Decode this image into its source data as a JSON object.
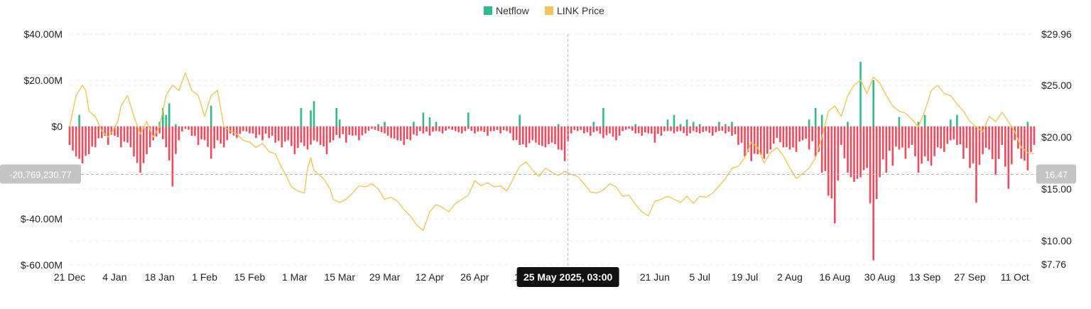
{
  "chart_data": {
    "type": "bar+line",
    "legend": [
      {
        "name": "Netflow",
        "color": "#2ebd85"
      },
      {
        "name": "LINK Price",
        "color": "#f6c453"
      }
    ],
    "x_ticks": [
      "21 Dec",
      "4 Jan",
      "18 Jan",
      "1 Feb",
      "15 Feb",
      "1 Mar",
      "15 Mar",
      "29 Mar",
      "12 Apr",
      "26 Apr",
      "10",
      "21 Jun",
      "5 Jul",
      "19 Jul",
      "2 Aug",
      "16 Aug",
      "30 Aug",
      "13 Sep",
      "27 Sep",
      "11 Oct"
    ],
    "x_tick_days": [
      0,
      14,
      28,
      42,
      56,
      70,
      84,
      98,
      112,
      126,
      140,
      182,
      196,
      210,
      224,
      238,
      252,
      266,
      280,
      294
    ],
    "y_left_ticks": [
      "$40.00M",
      "$20.00M",
      "$0",
      "$-40.00M",
      "$-60.00M"
    ],
    "y_left_tick_values": [
      40,
      20,
      0,
      -40,
      -60
    ],
    "y_left_range": [
      -60,
      40
    ],
    "y_right_ticks": [
      "$29.96",
      "$25.00",
      "$20.00",
      "$15.00",
      "$10.00",
      "$7.76"
    ],
    "y_right_tick_values": [
      29.96,
      25,
      20,
      15,
      10,
      7.76
    ],
    "y_right_range": [
      7.76,
      29.96
    ],
    "crosshair": {
      "day": 155,
      "left_label": "-20,769,230.77",
      "right_label": "16.47",
      "left_value": -20.77,
      "right_value": 16.47,
      "tooltip": "25 May 2025, 03:00"
    },
    "netflow_anchors": [
      [
        0,
        -8
      ],
      [
        2,
        -13
      ],
      [
        4,
        -16
      ],
      [
        6,
        -12
      ],
      [
        8,
        -9
      ],
      [
        10,
        -5
      ],
      [
        12,
        -8
      ],
      [
        14,
        -4
      ],
      [
        16,
        -9
      ],
      [
        18,
        -7
      ],
      [
        20,
        -13
      ],
      [
        22,
        -20
      ],
      [
        24,
        -12
      ],
      [
        26,
        -6
      ],
      [
        28,
        -3
      ],
      [
        30,
        -9
      ],
      [
        32,
        -26
      ],
      [
        34,
        -6
      ],
      [
        36,
        -1
      ],
      [
        38,
        -4
      ],
      [
        40,
        -8
      ],
      [
        42,
        -6
      ],
      [
        44,
        -14
      ],
      [
        46,
        -6
      ],
      [
        48,
        -9
      ],
      [
        50,
        -3
      ],
      [
        52,
        -5
      ],
      [
        54,
        -2
      ],
      [
        56,
        -3
      ],
      [
        58,
        -5
      ],
      [
        60,
        -6
      ],
      [
        62,
        -5
      ],
      [
        64,
        -7
      ],
      [
        66,
        -9
      ],
      [
        68,
        -6
      ],
      [
        70,
        -12
      ],
      [
        72,
        -7
      ],
      [
        74,
        -10
      ],
      [
        76,
        -6
      ],
      [
        78,
        -8
      ],
      [
        80,
        -12
      ],
      [
        82,
        -6
      ],
      [
        84,
        -5
      ],
      [
        86,
        -7
      ],
      [
        88,
        -4
      ],
      [
        90,
        -6
      ],
      [
        92,
        -3
      ],
      [
        94,
        -1
      ],
      [
        96,
        -2
      ],
      [
        98,
        -3
      ],
      [
        100,
        -5
      ],
      [
        102,
        -6
      ],
      [
        104,
        -8
      ],
      [
        106,
        -6
      ],
      [
        108,
        -4
      ],
      [
        110,
        -3
      ],
      [
        112,
        -4
      ],
      [
        114,
        -2
      ],
      [
        116,
        -3
      ],
      [
        118,
        -1
      ],
      [
        120,
        -2
      ],
      [
        122,
        -3
      ],
      [
        124,
        -1
      ],
      [
        126,
        -3
      ],
      [
        128,
        -2
      ],
      [
        130,
        -4
      ],
      [
        132,
        -2
      ],
      [
        134,
        -3
      ],
      [
        136,
        -2
      ],
      [
        138,
        -6
      ],
      [
        140,
        -8
      ],
      [
        142,
        -9
      ],
      [
        144,
        -6
      ],
      [
        146,
        -8
      ],
      [
        148,
        -9
      ],
      [
        150,
        -7
      ],
      [
        152,
        -10
      ],
      [
        154,
        -15
      ],
      [
        156,
        -3
      ],
      [
        158,
        -2
      ],
      [
        160,
        -3
      ],
      [
        162,
        -4
      ],
      [
        164,
        -2
      ],
      [
        166,
        -5
      ],
      [
        168,
        -3
      ],
      [
        170,
        -6
      ],
      [
        172,
        -2
      ],
      [
        174,
        -1
      ],
      [
        176,
        -3
      ],
      [
        178,
        -4
      ],
      [
        180,
        -3
      ],
      [
        182,
        -7
      ],
      [
        184,
        -4
      ],
      [
        186,
        -2
      ],
      [
        188,
        -3
      ],
      [
        190,
        -2
      ],
      [
        192,
        -4
      ],
      [
        194,
        -2
      ],
      [
        196,
        -3
      ],
      [
        198,
        -2
      ],
      [
        200,
        -4
      ],
      [
        202,
        -2
      ],
      [
        204,
        -3
      ],
      [
        206,
        -4
      ],
      [
        208,
        -8
      ],
      [
        210,
        -13
      ],
      [
        212,
        -15
      ],
      [
        214,
        -12
      ],
      [
        216,
        -14
      ],
      [
        218,
        -10
      ],
      [
        220,
        -5
      ],
      [
        222,
        -9
      ],
      [
        224,
        -10
      ],
      [
        226,
        -11
      ],
      [
        228,
        -6
      ],
      [
        230,
        -10
      ],
      [
        232,
        -13
      ],
      [
        234,
        -20
      ],
      [
        236,
        -30
      ],
      [
        238,
        -42
      ],
      [
        240,
        -8
      ],
      [
        242,
        -20
      ],
      [
        244,
        -24
      ],
      [
        246,
        -22
      ],
      [
        248,
        -18
      ],
      [
        250,
        -58
      ],
      [
        252,
        -22
      ],
      [
        254,
        -20
      ],
      [
        256,
        -17
      ],
      [
        258,
        -10
      ],
      [
        260,
        -14
      ],
      [
        262,
        -8
      ],
      [
        264,
        -20
      ],
      [
        266,
        -13
      ],
      [
        268,
        -17
      ],
      [
        270,
        -9
      ],
      [
        272,
        -11
      ],
      [
        274,
        -6
      ],
      [
        276,
        -8
      ],
      [
        278,
        -14
      ],
      [
        280,
        -18
      ],
      [
        282,
        -33
      ],
      [
        284,
        -12
      ],
      [
        286,
        -10
      ],
      [
        288,
        -21
      ],
      [
        290,
        -8
      ],
      [
        292,
        -27
      ],
      [
        294,
        -6
      ],
      [
        296,
        -14
      ],
      [
        298,
        -19
      ],
      [
        300,
        -8
      ]
    ],
    "netflow_positive": [
      [
        3,
        5
      ],
      [
        28,
        2
      ],
      [
        29,
        8
      ],
      [
        30,
        5
      ],
      [
        31,
        10
      ],
      [
        33,
        1
      ],
      [
        44,
        9
      ],
      [
        72,
        8
      ],
      [
        75,
        7
      ],
      [
        76,
        11
      ],
      [
        83,
        8
      ],
      [
        84,
        3
      ],
      [
        96,
        1
      ],
      [
        98,
        2
      ],
      [
        107,
        2
      ],
      [
        110,
        6
      ],
      [
        112,
        4
      ],
      [
        114,
        2
      ],
      [
        124,
        6
      ],
      [
        140,
        5
      ],
      [
        152,
        1
      ],
      [
        163,
        2
      ],
      [
        166,
        8
      ],
      [
        176,
        1
      ],
      [
        186,
        3
      ],
      [
        188,
        5
      ],
      [
        190,
        1
      ],
      [
        192,
        3
      ],
      [
        194,
        2
      ],
      [
        196,
        1
      ],
      [
        202,
        2
      ],
      [
        204,
        1
      ],
      [
        206,
        2
      ],
      [
        230,
        3
      ],
      [
        232,
        8
      ],
      [
        234,
        5
      ],
      [
        242,
        2
      ],
      [
        246,
        28
      ],
      [
        250,
        20
      ],
      [
        258,
        4
      ],
      [
        264,
        2
      ],
      [
        266,
        5
      ],
      [
        274,
        3
      ],
      [
        276,
        5
      ],
      [
        298,
        2
      ]
    ],
    "price_anchors": [
      [
        0,
        21
      ],
      [
        2,
        24
      ],
      [
        4,
        25
      ],
      [
        5,
        24.5
      ],
      [
        6,
        22.5
      ],
      [
        8,
        22
      ],
      [
        10,
        20.6
      ],
      [
        12,
        20
      ],
      [
        13,
        20.4
      ],
      [
        15,
        21.5
      ],
      [
        16,
        23
      ],
      [
        18,
        24
      ],
      [
        20,
        22
      ],
      [
        22,
        20.3
      ],
      [
        24,
        21.5
      ],
      [
        26,
        20
      ],
      [
        28,
        21
      ],
      [
        30,
        24
      ],
      [
        32,
        25
      ],
      [
        34,
        24.5
      ],
      [
        36,
        26.2
      ],
      [
        38,
        24.5
      ],
      [
        40,
        24
      ],
      [
        42,
        22
      ],
      [
        44,
        24
      ],
      [
        46,
        24.5
      ],
      [
        48,
        21
      ],
      [
        50,
        20.6
      ],
      [
        52,
        20.3
      ],
      [
        54,
        19.7
      ],
      [
        56,
        19.5
      ],
      [
        58,
        19
      ],
      [
        60,
        19.4
      ],
      [
        62,
        18.6
      ],
      [
        64,
        18.4
      ],
      [
        66,
        17
      ],
      [
        67,
        16.5
      ],
      [
        69,
        15.2
      ],
      [
        71,
        14.8
      ],
      [
        73,
        14.6
      ],
      [
        74,
        17
      ],
      [
        75,
        18
      ],
      [
        76,
        16.8
      ],
      [
        77,
        16.5
      ],
      [
        79,
        16
      ],
      [
        81,
        15
      ],
      [
        82,
        14
      ],
      [
        84,
        13.7
      ],
      [
        86,
        14
      ],
      [
        88,
        14.6
      ],
      [
        90,
        15.3
      ],
      [
        92,
        15.2
      ],
      [
        94,
        15.5
      ],
      [
        96,
        15
      ],
      [
        98,
        14
      ],
      [
        100,
        14.2
      ],
      [
        102,
        13.8
      ],
      [
        104,
        13
      ],
      [
        106,
        12.4
      ],
      [
        108,
        11.5
      ],
      [
        110,
        11
      ],
      [
        112,
        12.8
      ],
      [
        114,
        13.5
      ],
      [
        116,
        13.2
      ],
      [
        118,
        12.8
      ],
      [
        120,
        13.6
      ],
      [
        122,
        14
      ],
      [
        124,
        14.4
      ],
      [
        126,
        15.8
      ],
      [
        128,
        15.3
      ],
      [
        130,
        15.6
      ],
      [
        132,
        15.2
      ],
      [
        134,
        15.3
      ],
      [
        136,
        14.8
      ],
      [
        138,
        16
      ],
      [
        140,
        17.2
      ],
      [
        142,
        17.6
      ],
      [
        144,
        16.8
      ],
      [
        146,
        16.2
      ],
      [
        148,
        17
      ],
      [
        150,
        16.6
      ],
      [
        152,
        16.3
      ],
      [
        154,
        16.7
      ],
      [
        156,
        16.4
      ],
      [
        158,
        16.2
      ],
      [
        160,
        15.5
      ],
      [
        162,
        14.7
      ],
      [
        164,
        14.6
      ],
      [
        166,
        14.9
      ],
      [
        168,
        15.5
      ],
      [
        170,
        15.2
      ],
      [
        172,
        14.3
      ],
      [
        174,
        14.4
      ],
      [
        176,
        13.5
      ],
      [
        178,
        12.8
      ],
      [
        180,
        12.4
      ],
      [
        182,
        13.8
      ],
      [
        184,
        14
      ],
      [
        186,
        14.3
      ],
      [
        188,
        14
      ],
      [
        190,
        13.7
      ],
      [
        192,
        14.3
      ],
      [
        194,
        13.6
      ],
      [
        196,
        14.3
      ],
      [
        198,
        14.2
      ],
      [
        200,
        14.6
      ],
      [
        202,
        15.3
      ],
      [
        204,
        16
      ],
      [
        206,
        17
      ],
      [
        208,
        17.2
      ],
      [
        210,
        18
      ],
      [
        212,
        19.5
      ],
      [
        214,
        19
      ],
      [
        216,
        17.5
      ],
      [
        218,
        18.5
      ],
      [
        220,
        19
      ],
      [
        222,
        18.2
      ],
      [
        224,
        17
      ],
      [
        226,
        16
      ],
      [
        228,
        16.5
      ],
      [
        230,
        17
      ],
      [
        232,
        18
      ],
      [
        234,
        20
      ],
      [
        236,
        22.5
      ],
      [
        238,
        23
      ],
      [
        240,
        22
      ],
      [
        242,
        24
      ],
      [
        244,
        25
      ],
      [
        246,
        25.5
      ],
      [
        248,
        24.2
      ],
      [
        250,
        25.8
      ],
      [
        252,
        25.2
      ],
      [
        254,
        24
      ],
      [
        256,
        23
      ],
      [
        258,
        22.5
      ],
      [
        260,
        22.3
      ],
      [
        262,
        21.7
      ],
      [
        264,
        21
      ],
      [
        266,
        22.5
      ],
      [
        268,
        24.5
      ],
      [
        270,
        25
      ],
      [
        272,
        24.2
      ],
      [
        274,
        24
      ],
      [
        276,
        23.2
      ],
      [
        278,
        22.5
      ],
      [
        280,
        21.5
      ],
      [
        282,
        21
      ],
      [
        284,
        20.5
      ],
      [
        286,
        22
      ],
      [
        288,
        21.5
      ],
      [
        290,
        22.4
      ],
      [
        292,
        21.5
      ],
      [
        294,
        20.5
      ],
      [
        296,
        19
      ],
      [
        298,
        18.5
      ],
      [
        300,
        18.4
      ]
    ]
  }
}
